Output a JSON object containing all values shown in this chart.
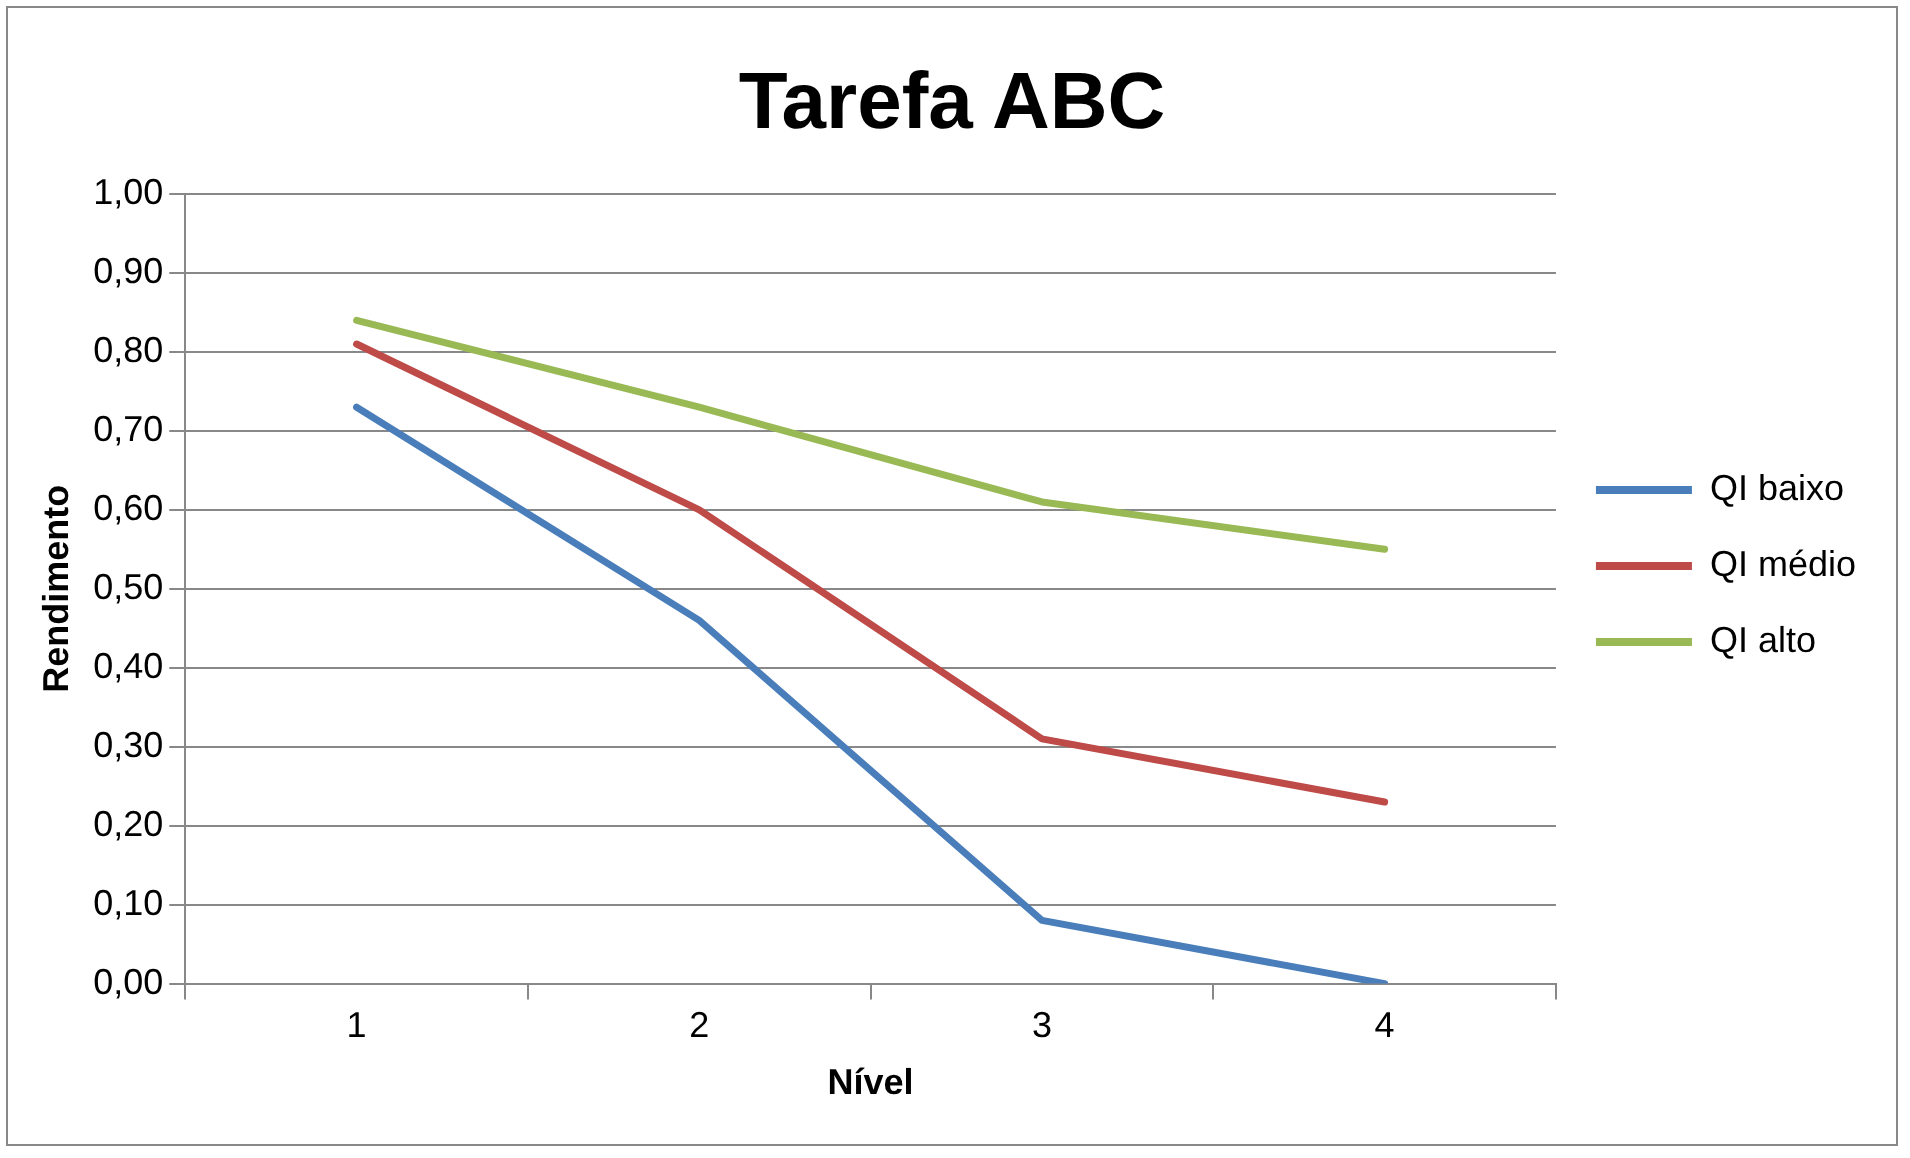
{
  "chart_data": {
    "type": "line",
    "title": "Tarefa ABC",
    "xlabel": "Nível",
    "ylabel": "Rendimento",
    "categories": [
      "1",
      "2",
      "3",
      "4"
    ],
    "series": [
      {
        "name": "QI baixo",
        "color": "#4a7ebb",
        "values": [
          0.73,
          0.46,
          0.08,
          0.0
        ]
      },
      {
        "name": "QI médio",
        "color": "#be4b48",
        "values": [
          0.81,
          0.6,
          0.31,
          0.23
        ]
      },
      {
        "name": "QI alto",
        "color": "#98b954",
        "values": [
          0.84,
          0.73,
          0.61,
          0.55
        ]
      }
    ],
    "ylim": [
      0,
      1
    ],
    "yticks": [
      {
        "value": 0,
        "label": "0,00"
      },
      {
        "value": 0.1,
        "label": "0,10"
      },
      {
        "value": 0.2,
        "label": "0,20"
      },
      {
        "value": 0.3,
        "label": "0,30"
      },
      {
        "value": 0.4,
        "label": "0,40"
      },
      {
        "value": 0.5,
        "label": "0,50"
      },
      {
        "value": 0.6,
        "label": "0,60"
      },
      {
        "value": 0.7,
        "label": "0,70"
      },
      {
        "value": 0.8,
        "label": "0,80"
      },
      {
        "value": 0.9,
        "label": "0,90"
      },
      {
        "value": 1,
        "label": "1,00"
      }
    ],
    "grid": "y",
    "legend": "right",
    "marker": "none",
    "line_style": "solid"
  }
}
